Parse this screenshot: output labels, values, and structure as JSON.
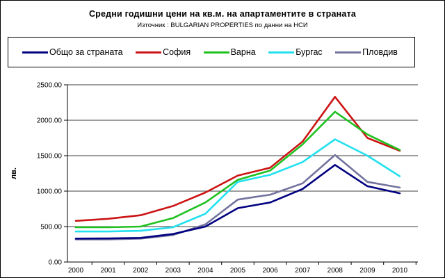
{
  "header": {
    "title": "Средни годишни цени на кв.м. на апартаментите в страната",
    "subtitle": "Източник : BULGARIAN PROPERTIES по данни на НСИ"
  },
  "chart_data": {
    "type": "line",
    "title": "Средни годишни цени на кв.м. на апартаментите в страната",
    "subtitle": "Източник : BULGARIAN PROPERTIES по данни на НСИ",
    "categories": [
      "2000",
      "2001",
      "2002",
      "2003",
      "2004",
      "2005",
      "2006",
      "2007",
      "2008",
      "2009",
      "2010"
    ],
    "series": [
      {
        "name": "Общо за страната",
        "color": "#000080",
        "values": [
          330,
          332,
          340,
          395,
          500,
          760,
          840,
          1030,
          1370,
          1070,
          970
        ]
      },
      {
        "name": "София",
        "color": "#CC1414",
        "values": [
          580,
          610,
          660,
          790,
          980,
          1220,
          1330,
          1700,
          2330,
          1750,
          1570
        ]
      },
      {
        "name": "Варна",
        "color": "#1FC11F",
        "values": [
          490,
          490,
          500,
          620,
          840,
          1160,
          1290,
          1660,
          2120,
          1800,
          1580
        ]
      },
      {
        "name": "Бургас",
        "color": "#22E0EE",
        "values": [
          430,
          430,
          440,
          490,
          680,
          1130,
          1230,
          1410,
          1730,
          1500,
          1210
        ]
      },
      {
        "name": "Пловдив",
        "color": "#73739E",
        "values": [
          320,
          320,
          330,
          380,
          530,
          880,
          950,
          1110,
          1510,
          1130,
          1050
        ]
      }
    ],
    "xlabel": "",
    "ylabel": "лв.",
    "ylim": [
      0,
      2500
    ],
    "y_tick_step": 500,
    "y_ticks": [
      "0.00",
      "500.00",
      "1000.00",
      "1500.00",
      "2000.00",
      "2500.00"
    ],
    "grid": true,
    "legend_position": "top",
    "colors": {
      "grid": "#3c3c3c",
      "axis": "#000000",
      "background": "#ffffff"
    }
  }
}
